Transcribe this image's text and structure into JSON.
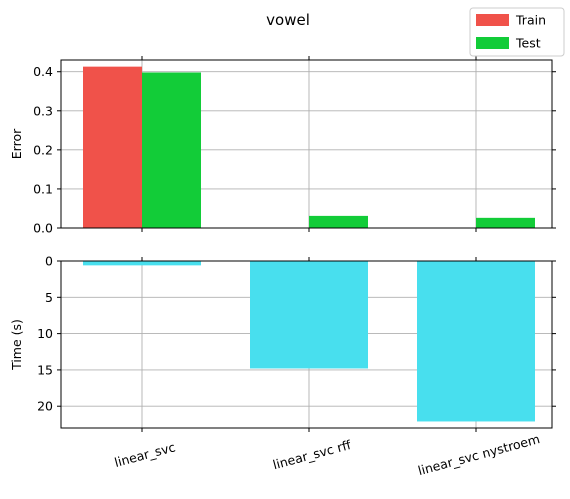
{
  "chart_data": {
    "title": "vowel",
    "categories": [
      "linear_svc",
      "linear_svc rff",
      "linear_svc nystroem"
    ],
    "legend": {
      "placement": "top-right",
      "entries": [
        "Train",
        "Test"
      ]
    },
    "colors": {
      "train": "#f0524a",
      "test": "#12cc38",
      "time": "#48dfee"
    },
    "grid": true,
    "panels": [
      {
        "type": "bar",
        "ylabel": "Error",
        "ylim": [
          0,
          0.43
        ],
        "yticks": [
          0.0,
          0.1,
          0.2,
          0.3,
          0.4
        ],
        "ytick_labels": [
          "0.0",
          "0.1",
          "0.2",
          "0.3",
          "0.4"
        ],
        "series": [
          {
            "name": "Train",
            "values": [
              0.413,
              0.0,
              0.0
            ]
          },
          {
            "name": "Test",
            "values": [
              0.398,
              0.031,
              0.026
            ]
          }
        ]
      },
      {
        "type": "bar",
        "ylabel": "Time (s)",
        "ylim": [
          23,
          0
        ],
        "inverted": true,
        "yticks": [
          0,
          5,
          10,
          15,
          20
        ],
        "ytick_labels": [
          "0",
          "5",
          "10",
          "15",
          "20"
        ],
        "series": [
          {
            "name": "Time",
            "values": [
              0.6,
              14.8,
              22.1
            ]
          }
        ]
      }
    ]
  }
}
